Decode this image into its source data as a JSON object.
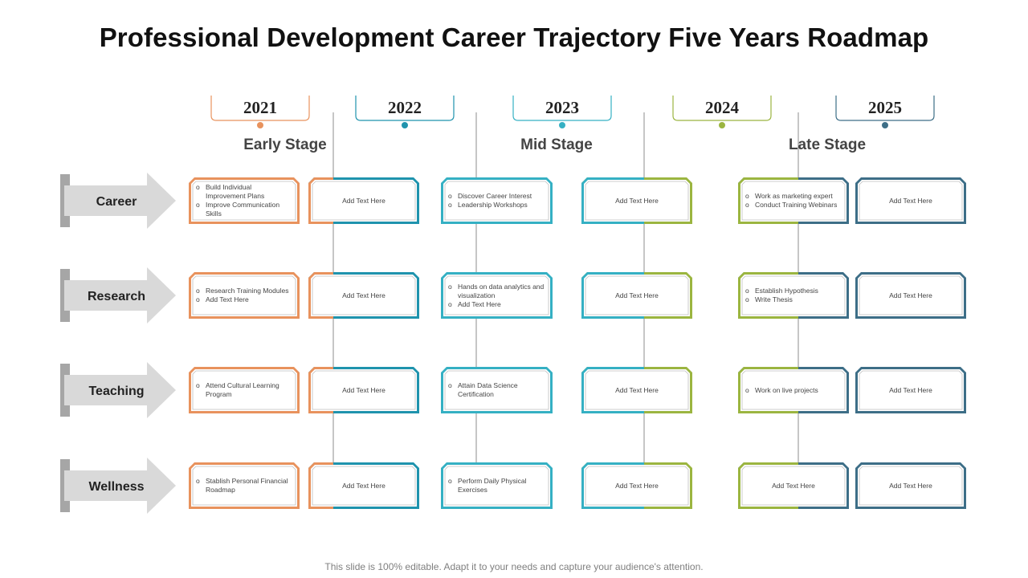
{
  "title": "Professional Development Career Trajectory Five Years Roadmap",
  "footer": "This slide is 100% editable. Adapt it to your needs and capture your audience's attention.",
  "colors": {
    "orange": "#e8925d",
    "teal_dark": "#1f93ad",
    "teal_light": "#35b0c3",
    "green": "#9bb540",
    "slate": "#3d6e87",
    "arrow_fill": "#d9d9d9",
    "arrow_edge": "#a6a6a6",
    "divider": "#8c8c8c"
  },
  "years": [
    {
      "label": "2021",
      "color": "orange"
    },
    {
      "label": "2022",
      "color": "teal_dark"
    },
    {
      "label": "2023",
      "color": "teal_light"
    },
    {
      "label": "2024",
      "color": "green"
    },
    {
      "label": "2025",
      "color": "slate"
    }
  ],
  "stages": [
    "Early Stage",
    "Mid Stage",
    "Late Stage"
  ],
  "rows": [
    {
      "label": "Career",
      "cards": [
        {
          "bullets": [
            "Build Individual Improvement Plans",
            "Improve Communication Skills"
          ]
        },
        {
          "text": "Add Text Here"
        },
        {
          "bullets": [
            "Discover Career Interest",
            "Leadership Workshops"
          ]
        },
        {
          "text": "Add Text Here"
        },
        {
          "bullets": [
            "Work as marketing expert",
            "Conduct Training Webinars"
          ]
        },
        {
          "text": "Add Text Here"
        }
      ]
    },
    {
      "label": "Research",
      "cards": [
        {
          "bullets": [
            "Research Training Modules",
            "Add Text Here"
          ]
        },
        {
          "text": "Add Text Here"
        },
        {
          "bullets": [
            "Hands on data analytics and visualization",
            "Add Text Here"
          ]
        },
        {
          "text": "Add Text Here"
        },
        {
          "bullets": [
            "Establish Hypothesis",
            "Write Thesis"
          ]
        },
        {
          "text": "Add Text Here"
        }
      ]
    },
    {
      "label": "Teaching",
      "cards": [
        {
          "bullets": [
            "Attend Cultural Learning Program"
          ]
        },
        {
          "text": "Add Text Here"
        },
        {
          "bullets": [
            "Attain Data Science Certification"
          ]
        },
        {
          "text": "Add Text Here"
        },
        {
          "bullets": [
            "Work on live projects"
          ]
        },
        {
          "text": "Add Text Here"
        }
      ]
    },
    {
      "label": "Wellness",
      "cards": [
        {
          "bullets": [
            "Stablish Personal Financial Roadmap"
          ]
        },
        {
          "text": "Add Text Here"
        },
        {
          "bullets": [
            "Perform Daily Physical Exercises"
          ]
        },
        {
          "text": "Add Text Here"
        },
        {
          "text": "Add Text Here"
        },
        {
          "text": "Add Text Here"
        }
      ]
    }
  ]
}
